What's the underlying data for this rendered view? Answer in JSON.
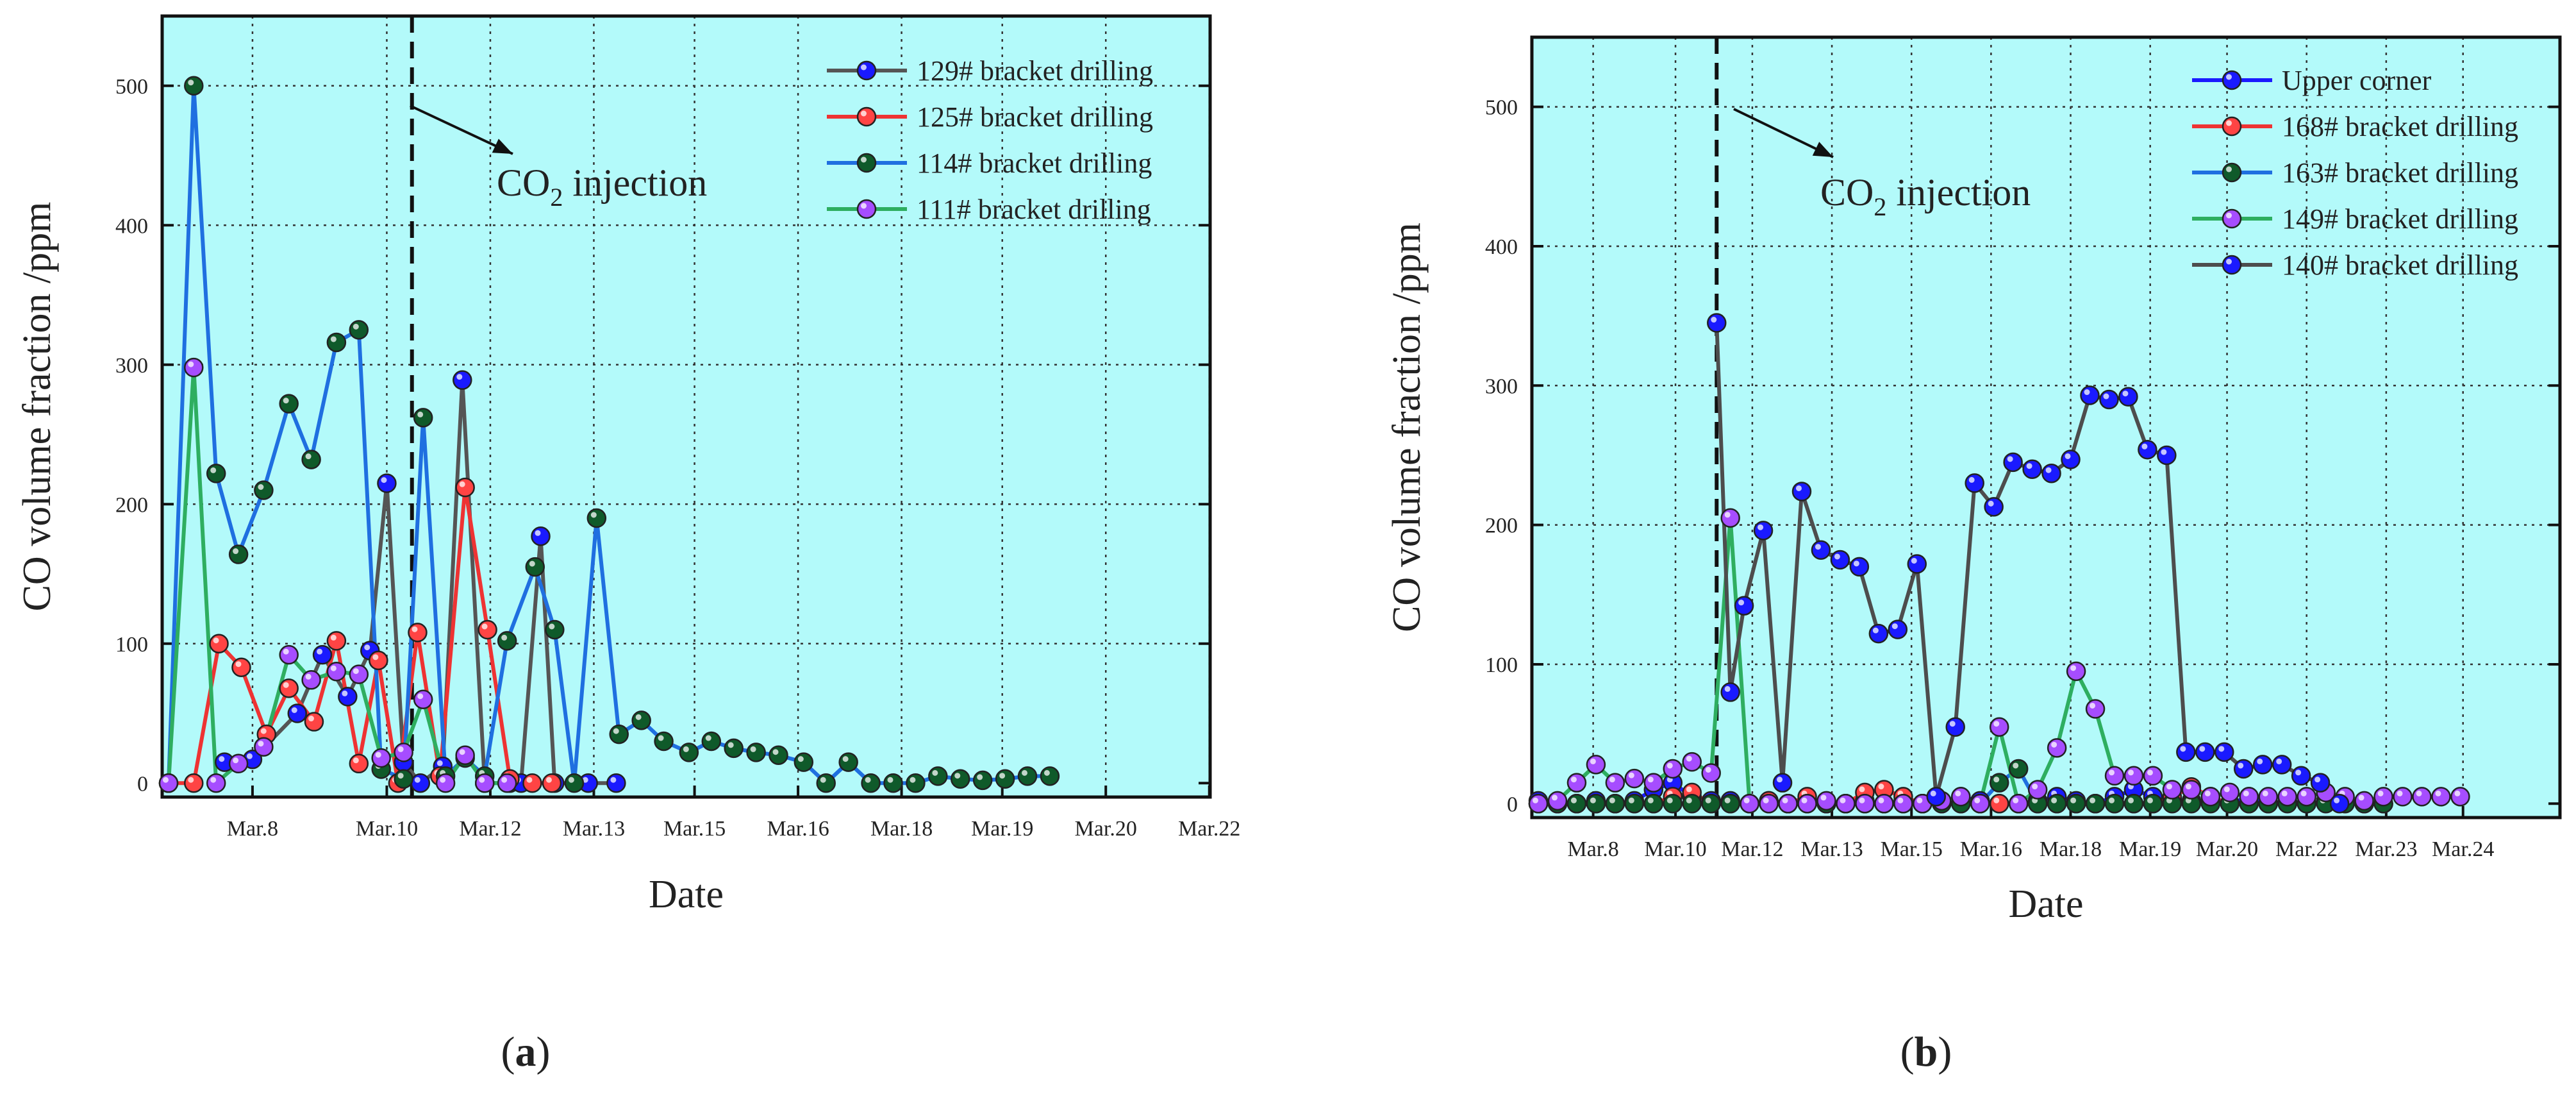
{
  "chart_data": [
    {
      "id": "a",
      "type": "line",
      "caption_letter": "a",
      "xlabel": "Date",
      "ylabel": "CO volume fraction /ppm",
      "ylim": [
        -10,
        550
      ],
      "xlim": [
        0,
        37
      ],
      "yticks": [
        0,
        100,
        200,
        300,
        400,
        500
      ],
      "xticks": [
        {
          "x": 3,
          "label": "Mar.8"
        },
        {
          "x": 7.8,
          "label": "Mar.10"
        },
        {
          "x": 11.5,
          "label": "Mar.12"
        },
        {
          "x": 15.2,
          "label": "Mar.13"
        },
        {
          "x": 18.8,
          "label": "Mar.15"
        },
        {
          "x": 22.5,
          "label": "Mar.16"
        },
        {
          "x": 26.2,
          "label": "Mar.18"
        },
        {
          "x": 29.8,
          "label": "Mar.19"
        },
        {
          "x": 33.5,
          "label": "Mar.20"
        },
        {
          "x": 37.2,
          "label": "Mar.22"
        }
      ],
      "grid": true,
      "background_color": "#b3fafa",
      "legend_position": "top-right",
      "injection_x": 8.7,
      "annotation": {
        "prefix": "CO",
        "sub": "2",
        "suffix": " injection"
      },
      "series": [
        {
          "name": "129# bracket drilling",
          "line_color": "#555555",
          "marker_color": "#1a1aff",
          "x": [
            2,
            3,
            4.6,
            5.5,
            6.4,
            7.2,
            7.8,
            8.4,
            9.0,
            9.8,
            10.5,
            11.3,
            12.2,
            12.6,
            13.3,
            13.8,
            15,
            16
          ],
          "y": [
            15,
            17,
            50,
            92,
            62,
            95,
            215,
            15,
            0,
            12,
            289,
            0,
            0,
            0,
            177,
            0,
            0,
            0
          ]
        },
        {
          "name": "125# bracket drilling",
          "line_color": "#ee3333",
          "marker_color": "#ff4444",
          "x": [
            0,
            0.9,
            1.8,
            2.6,
            3.5,
            4.3,
            5.2,
            6.0,
            6.8,
            7.5,
            8.2,
            8.9,
            9.7,
            10.6,
            11.4,
            12.2,
            13.0,
            13.7
          ],
          "y": [
            0,
            0,
            100,
            83,
            35,
            68,
            44,
            102,
            14,
            88,
            0,
            108,
            5,
            212,
            110,
            3,
            0,
            0
          ]
        },
        {
          "name": "114# bracket drilling",
          "line_color": "#1f6fe0",
          "marker_color": "#0f5a2a",
          "x": [
            0,
            0.9,
            1.7,
            2.5,
            3.4,
            4.3,
            5.1,
            6.0,
            6.8,
            7.6,
            8.4,
            9.1,
            9.9,
            10.6,
            11.3,
            12.1,
            13.1,
            13.8,
            14.5,
            15.3,
            16.1,
            16.9,
            17.7,
            18.6,
            19.4,
            20.2,
            21.0,
            21.8,
            22.7,
            23.5,
            24.3,
            25.1,
            25.9,
            26.7,
            27.5,
            28.3,
            29.1,
            29.9,
            30.7,
            31.5
          ],
          "y": [
            0,
            500,
            222,
            164,
            210,
            272,
            232,
            316,
            325,
            10,
            3,
            262,
            5,
            18,
            5,
            102,
            155,
            110,
            0,
            190,
            35,
            45,
            30,
            22,
            30,
            25,
            22,
            20,
            15,
            0,
            15,
            0,
            0,
            0,
            5,
            3,
            2,
            3,
            5,
            5
          ]
        },
        {
          "name": "111# bracket drilling",
          "line_color": "#2eae60",
          "marker_color": "#a64dff",
          "x": [
            0,
            0.9,
            1.7,
            2.5,
            3.4,
            4.3,
            5.1,
            6.0,
            6.8,
            7.6,
            8.4,
            9.1,
            9.9,
            10.6,
            11.3,
            12.1
          ],
          "y": [
            0,
            298,
            0,
            14,
            26,
            92,
            74,
            80,
            78,
            18,
            22,
            60,
            0,
            20,
            0,
            0
          ]
        }
      ]
    },
    {
      "id": "b",
      "type": "line",
      "caption_letter": "b",
      "xlabel": "Date",
      "ylabel": "CO volume fraction /ppm",
      "ylim": [
        -10,
        550
      ],
      "xlim": [
        0,
        37
      ],
      "yticks": [
        0,
        100,
        200,
        300,
        400,
        500
      ],
      "xticks": [
        {
          "x": 2,
          "label": "Mar.8"
        },
        {
          "x": 5,
          "label": "Mar.10"
        },
        {
          "x": 7.8,
          "label": "Mar.12"
        },
        {
          "x": 10.7,
          "label": "Mar.13"
        },
        {
          "x": 13.6,
          "label": "Mar.15"
        },
        {
          "x": 16.5,
          "label": "Mar.16"
        },
        {
          "x": 19.4,
          "label": "Mar.18"
        },
        {
          "x": 22.3,
          "label": "Mar.19"
        },
        {
          "x": 25.1,
          "label": "Mar.20"
        },
        {
          "x": 28,
          "label": "Mar.22"
        },
        {
          "x": 30.9,
          "label": "Mar.23"
        },
        {
          "x": 33.7,
          "label": "Mar.24"
        }
      ],
      "grid": true,
      "background_color": "#b3fafa",
      "legend_position": "top-right",
      "injection_x": 6.5,
      "annotation": {
        "prefix": "CO",
        "sub": "2",
        "suffix": " injection"
      },
      "series": [
        {
          "name": "Upper corner",
          "line_color": "#1a1aff",
          "marker_color": "#1a1aff",
          "x": [
            0,
            0.7,
            1.4,
            2.1,
            2.8,
            3.5,
            4.2,
            4.9,
            5.6,
            6.3,
            7.0,
            7.7,
            8.4,
            9.1,
            9.8,
            10.5,
            11.2,
            11.9,
            12.6,
            13.3,
            14.0,
            14.7,
            15.4,
            16.1,
            16.8,
            17.5,
            18.2,
            18.9,
            19.6,
            20.3,
            21.0,
            21.7,
            22.4,
            23.1,
            23.8,
            24.5,
            25.2,
            25.9,
            26.6,
            27.3,
            28.0,
            28.7,
            29.4,
            30.1,
            30.8
          ],
          "y": [
            2,
            0,
            0,
            2,
            0,
            2,
            10,
            15,
            5,
            2,
            2,
            0,
            2,
            0,
            2,
            0,
            0,
            2,
            0,
            2,
            0,
            2,
            5,
            2,
            0,
            0,
            2,
            5,
            2,
            0,
            5,
            10,
            5,
            2,
            2,
            2,
            0,
            5,
            0,
            2,
            0,
            2,
            2,
            0,
            0
          ]
        },
        {
          "name": "168# bracket drilling",
          "line_color": "#ee3333",
          "marker_color": "#ff4444",
          "x": [
            0,
            0.7,
            1.4,
            2.1,
            2.8,
            3.5,
            4.2,
            4.9,
            5.6,
            6.3,
            7.0,
            7.7,
            8.4,
            9.1,
            9.8,
            10.5,
            11.2,
            11.9,
            12.6,
            13.3,
            14.0,
            14.7,
            15.4,
            16.1,
            16.8,
            17.5,
            18.2,
            18.9,
            19.6,
            20.3,
            21.0,
            21.7,
            22.4,
            23.1,
            23.8,
            24.5,
            25.2,
            25.9
          ],
          "y": [
            0,
            0,
            0,
            0,
            0,
            0,
            0,
            5,
            8,
            0,
            0,
            0,
            2,
            0,
            5,
            0,
            0,
            8,
            10,
            5,
            0,
            0,
            0,
            0,
            0,
            0,
            0,
            0,
            0,
            0,
            0,
            0,
            0,
            5,
            12,
            5,
            0,
            0
          ]
        },
        {
          "name": "163# bracket drilling",
          "line_color": "#1f6fe0",
          "marker_color": "#0f5a2a",
          "x": [
            0,
            0.7,
            1.4,
            2.1,
            2.8,
            3.5,
            4.2,
            4.9,
            5.6,
            6.3,
            7.0,
            7.7,
            8.4,
            9.1,
            9.8,
            10.5,
            11.2,
            11.9,
            12.6,
            13.3,
            14.0,
            14.7,
            15.4,
            16.1,
            16.8,
            17.5,
            18.2,
            18.9,
            19.6,
            20.3,
            21.0,
            21.7,
            22.4,
            23.1,
            23.8,
            24.5,
            25.2,
            25.9,
            26.6,
            27.3,
            28.0,
            28.7,
            29.4,
            30.1,
            30.8
          ],
          "y": [
            0,
            0,
            0,
            0,
            0,
            0,
            0,
            0,
            0,
            0,
            0,
            0,
            0,
            0,
            0,
            0,
            0,
            0,
            0,
            0,
            0,
            0,
            0,
            0,
            15,
            25,
            0,
            0,
            0,
            0,
            0,
            0,
            0,
            0,
            0,
            0,
            0,
            0,
            0,
            0,
            0,
            0,
            0,
            0,
            0
          ]
        },
        {
          "name": "149# bracket drilling",
          "line_color": "#2eae60",
          "marker_color": "#a64dff",
          "x": [
            0,
            0.7,
            1.4,
            2.1,
            2.8,
            3.5,
            4.2,
            4.9,
            5.6,
            6.3,
            7.0,
            7.7,
            8.4,
            9.1,
            9.8,
            10.5,
            11.2,
            11.9,
            12.6,
            13.3,
            14.0,
            14.7,
            15.4,
            16.1,
            16.8,
            17.5,
            18.2,
            18.9,
            19.6,
            20.3,
            21.0,
            21.7,
            22.4,
            23.1,
            23.8,
            24.5,
            25.2,
            25.9,
            26.6,
            27.3,
            28.0,
            28.7,
            29.4,
            30.1,
            30.8,
            31.5,
            32.2,
            32.9,
            33.6
          ],
          "y": [
            0,
            2,
            15,
            28,
            15,
            18,
            15,
            25,
            30,
            22,
            205,
            0,
            0,
            0,
            0,
            2,
            0,
            0,
            0,
            0,
            0,
            2,
            5,
            0,
            55,
            0,
            10,
            40,
            95,
            68,
            20,
            20,
            20,
            10,
            10,
            5,
            8,
            5,
            5,
            5,
            5,
            8,
            5,
            2,
            5,
            5,
            5,
            5,
            5
          ]
        },
        {
          "name": "140# bracket drilling",
          "line_color": "#4d4d4d",
          "marker_color": "#1a1aff",
          "x": [
            6.5,
            7.0,
            7.5,
            8.2,
            8.9,
            9.6,
            10.3,
            11.0,
            11.7,
            12.4,
            13.1,
            13.8,
            14.5,
            15.2,
            15.9,
            16.6,
            17.3,
            18.0,
            18.7,
            19.4,
            20.1,
            20.8,
            21.5,
            22.2,
            22.9,
            23.6,
            24.3,
            25.0,
            25.7,
            26.4,
            27.1,
            27.8,
            28.5,
            29.2
          ],
          "y": [
            345,
            80,
            142,
            196,
            15,
            224,
            182,
            175,
            170,
            122,
            125,
            172,
            5,
            55,
            230,
            213,
            245,
            240,
            237,
            247,
            293,
            290,
            292,
            254,
            250,
            37,
            37,
            37,
            25,
            28,
            28,
            20,
            15,
            0
          ]
        }
      ]
    }
  ]
}
